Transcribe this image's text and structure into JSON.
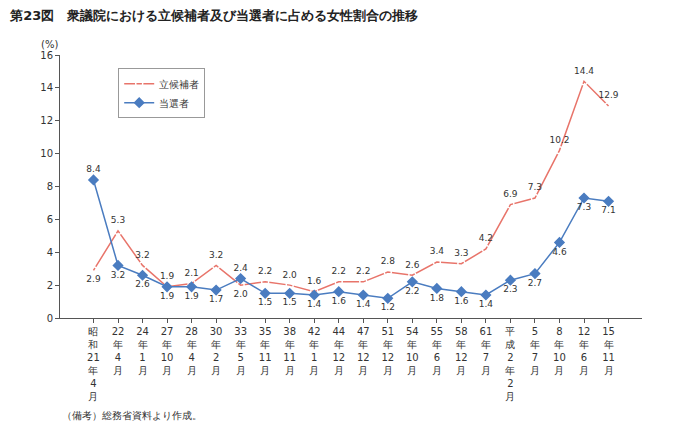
{
  "chart_data": {
    "type": "line",
    "title": "第23図　衆議院における立候補者及び当選者に占める女性割合の推移",
    "ylabel": "(%)",
    "note": "（備考）総務省資料より作成。",
    "categories": [
      "昭和21年4月",
      "22年4月",
      "24年1月",
      "27年10月",
      "28年4月",
      "30年2月",
      "33年5月",
      "35年11月",
      "38年11月",
      "42年1月",
      "44年12月",
      "47年12月",
      "51年12月",
      "54年10月",
      "55年6月",
      "58年12月",
      "61年7月",
      "平成2年2月",
      "5年7月",
      "8年10月",
      "12年6月",
      "15年11月"
    ],
    "series": [
      {
        "name": "立候補者",
        "color": "#e8746a",
        "marker": "circle-open",
        "line_style": "solid",
        "values": [
          2.9,
          5.3,
          3.2,
          1.9,
          2.1,
          3.2,
          2.0,
          2.2,
          2.0,
          1.6,
          2.2,
          2.2,
          2.8,
          2.6,
          3.4,
          3.3,
          4.2,
          6.9,
          7.3,
          10.2,
          14.4,
          12.9
        ],
        "value_labels": [
          "2.9",
          "5.3",
          "3.2",
          "1.9",
          "2.1",
          "3.2",
          "2.0",
          "2.2",
          "2.0",
          "1.6",
          "2.2",
          "2.2",
          "2.8",
          "2.6",
          "3.4",
          "3.3",
          "4.2",
          "6.9",
          "7.3",
          "10.2",
          "14.4",
          "12.9"
        ]
      },
      {
        "name": "当選者",
        "color": "#4a7cc0",
        "marker": "diamond",
        "line_style": "solid",
        "values": [
          8.4,
          3.2,
          2.6,
          1.9,
          1.9,
          1.7,
          2.4,
          1.5,
          1.5,
          1.4,
          1.6,
          1.4,
          1.2,
          2.2,
          1.8,
          1.6,
          1.4,
          2.3,
          2.7,
          4.6,
          7.3,
          7.1
        ],
        "value_labels": [
          "8.4",
          "3.2",
          "2.6",
          "1.9",
          "1.9",
          "1.7",
          "2.4",
          "1.5",
          "1.5",
          "1.4",
          "1.6",
          "1.4",
          "1.2",
          "2.2",
          "1.8",
          "1.6",
          "1.4",
          "2.3",
          "2.7",
          "4.6",
          "7.3",
          "7.1"
        ]
      }
    ],
    "ylim": [
      0,
      16
    ],
    "yticks": [
      0,
      2,
      4,
      6,
      8,
      10,
      12,
      14,
      16
    ],
    "grid": false,
    "legend": "upper left",
    "data_labels": true
  }
}
